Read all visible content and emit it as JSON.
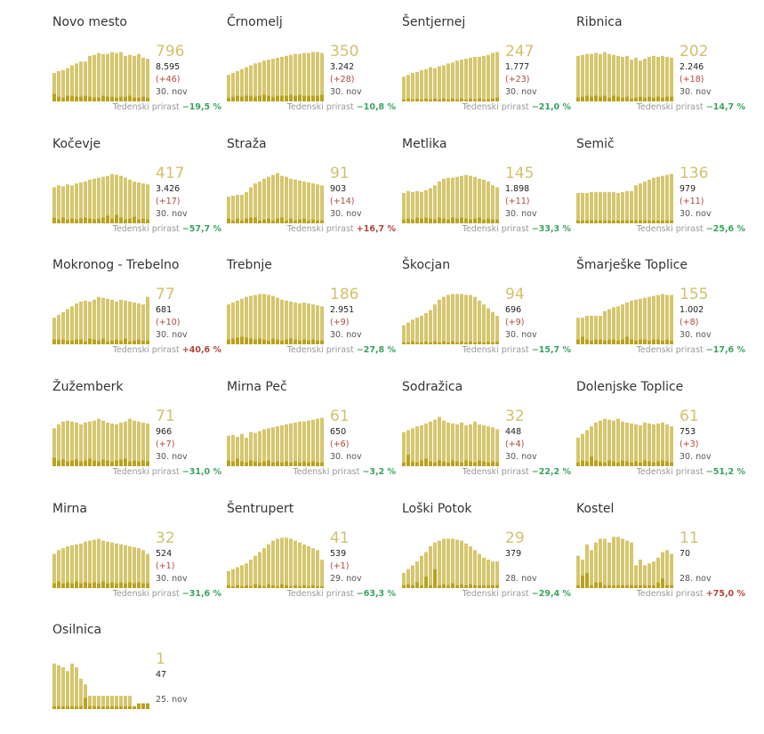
{
  "colors": {
    "bar": "#d6c66e",
    "bar_dark": "#b9a21d",
    "gap": "#ffffff",
    "neg": "#3aa35f",
    "pos": "#b0463c"
  },
  "week_label": "Tedenski prirast",
  "chart_data": [
    {
      "type": "bar",
      "name": "Novo mesto",
      "current": "796",
      "total": "8.595",
      "change": "(+46)",
      "date": "30. nov",
      "week": "−19,5 %",
      "week_sign": "neg",
      "values": [
        30,
        32,
        33,
        35,
        38,
        40,
        42,
        42,
        48,
        49,
        51,
        50,
        50,
        52,
        51,
        52,
        48,
        49,
        48,
        50,
        46,
        45
      ],
      "new": [
        8,
        5,
        4,
        6,
        6,
        5,
        5,
        6,
        5,
        4,
        4,
        6,
        5,
        5,
        4,
        5,
        5,
        6,
        4,
        4,
        5,
        4
      ]
    },
    {
      "type": "bar",
      "name": "Črnomelj",
      "current": "350",
      "total": "3.242",
      "change": "(+28)",
      "date": "30. nov",
      "week": "−10,8 %",
      "week_sign": "neg",
      "values": [
        28,
        30,
        32,
        34,
        36,
        38,
        40,
        41,
        43,
        44,
        45,
        46,
        47,
        48,
        49,
        50,
        50,
        51,
        51,
        52,
        52,
        51
      ],
      "new": [
        4,
        5,
        6,
        5,
        6,
        6,
        5,
        6,
        7,
        6,
        5,
        6,
        6,
        6,
        7,
        6,
        7,
        6,
        6,
        6,
        6,
        7
      ]
    },
    {
      "type": "bar",
      "name": "Šentjernej",
      "current": "247",
      "total": "1.777",
      "change": "(+23)",
      "date": "30. nov",
      "week": "−21,0 %",
      "week_sign": "neg",
      "values": [
        26,
        28,
        30,
        31,
        33,
        34,
        36,
        35,
        37,
        38,
        40,
        41,
        43,
        44,
        45,
        46,
        47,
        47,
        48,
        49,
        51,
        52
      ],
      "new": [
        2,
        3,
        2,
        3,
        2,
        3,
        2,
        3,
        2,
        3,
        2,
        3,
        2,
        3,
        2,
        3,
        2,
        3,
        2,
        2,
        3,
        4
      ]
    },
    {
      "type": "bar",
      "name": "Ribnica",
      "current": "202",
      "total": "2.246",
      "change": "(+18)",
      "date": "30. nov",
      "week": "−14,7 %",
      "week_sign": "neg",
      "values": [
        48,
        49,
        50,
        50,
        51,
        50,
        52,
        50,
        49,
        48,
        47,
        48,
        44,
        46,
        43,
        45,
        47,
        48,
        47,
        48,
        47,
        46
      ],
      "new": [
        4,
        5,
        6,
        5,
        6,
        5,
        6,
        4,
        6,
        5,
        4,
        5,
        3,
        4,
        5,
        4,
        5,
        4,
        5,
        4,
        5,
        5
      ]
    },
    {
      "type": "bar",
      "name": "Kočevje",
      "current": "417",
      "total": "3.426",
      "change": "(+17)",
      "date": "30. nov",
      "week": "−57,7 %",
      "week_sign": "neg",
      "values": [
        38,
        40,
        39,
        41,
        40,
        42,
        43,
        44,
        46,
        47,
        48,
        49,
        50,
        52,
        51,
        50,
        48,
        46,
        44,
        43,
        42,
        41
      ],
      "new": [
        6,
        4,
        6,
        4,
        5,
        4,
        5,
        6,
        5,
        4,
        5,
        6,
        8,
        5,
        9,
        6,
        4,
        5,
        7,
        4,
        5,
        4
      ]
    },
    {
      "type": "bar",
      "name": "Straža",
      "current": "91",
      "total": "903",
      "change": "(+14)",
      "date": "30. nov",
      "week": "+16,7 %",
      "week_sign": "pos",
      "values": [
        28,
        29,
        30,
        30,
        33,
        38,
        42,
        44,
        47,
        49,
        51,
        53,
        50,
        49,
        47,
        46,
        45,
        44,
        43,
        42,
        41,
        40
      ],
      "new": [
        5,
        3,
        5,
        3,
        5,
        6,
        6,
        3,
        4,
        5,
        3,
        5,
        6,
        3,
        5,
        3,
        4,
        5,
        3,
        4,
        3,
        3
      ]
    },
    {
      "type": "bar",
      "name": "Metlika",
      "current": "145",
      "total": "1.898",
      "change": "(+11)",
      "date": "30. nov",
      "week": "−33,3 %",
      "week_sign": "neg",
      "values": [
        32,
        34,
        33,
        34,
        33,
        35,
        37,
        40,
        44,
        47,
        48,
        48,
        49,
        50,
        51,
        50,
        49,
        47,
        46,
        44,
        40,
        38
      ],
      "new": [
        4,
        5,
        4,
        6,
        5,
        6,
        5,
        4,
        6,
        5,
        4,
        6,
        5,
        6,
        5,
        4,
        5,
        6,
        4,
        5,
        4,
        4
      ]
    },
    {
      "type": "bar",
      "name": "Semič",
      "current": "136",
      "total": "979",
      "change": "(+11)",
      "date": "30. nov",
      "week": "−25,6 %",
      "week_sign": "neg",
      "values": [
        32,
        32,
        32,
        33,
        33,
        33,
        33,
        33,
        33,
        32,
        33,
        34,
        34,
        40,
        42,
        44,
        46,
        48,
        49,
        50,
        51,
        52
      ],
      "new": [
        3,
        3,
        3,
        3,
        3,
        3,
        3,
        3,
        3,
        3,
        3,
        3,
        3,
        3,
        3,
        3,
        3,
        3,
        3,
        3,
        3,
        3
      ]
    },
    {
      "type": "bar",
      "name": "Mokronog - Trebelno",
      "current": "77",
      "total": "681",
      "change": "(+10)",
      "date": "30. nov",
      "week": "+40,6 %",
      "week_sign": "pos",
      "values": [
        28,
        31,
        34,
        37,
        40,
        43,
        45,
        46,
        45,
        47,
        50,
        49,
        48,
        47,
        45,
        47,
        46,
        45,
        44,
        43,
        42,
        50
      ],
      "new": [
        5,
        5,
        5,
        4,
        4,
        5,
        5,
        3,
        6,
        5,
        4,
        6,
        3,
        4,
        5,
        4,
        6,
        3,
        4,
        5,
        4,
        4
      ]
    },
    {
      "type": "bar",
      "name": "Trebnje",
      "current": "186",
      "total": "2.951",
      "change": "(+9)",
      "date": "30. nov",
      "week": "−27,8 %",
      "week_sign": "neg",
      "values": [
        42,
        44,
        46,
        48,
        50,
        51,
        52,
        53,
        53,
        52,
        51,
        49,
        47,
        46,
        45,
        44,
        43,
        44,
        43,
        42,
        41,
        40
      ],
      "new": [
        5,
        6,
        7,
        8,
        7,
        6,
        5,
        6,
        5,
        4,
        6,
        5,
        4,
        5,
        6,
        5,
        4,
        5,
        4,
        5,
        4,
        4
      ]
    },
    {
      "type": "bar",
      "name": "Škocjan",
      "current": "94",
      "total": "696",
      "change": "(+9)",
      "date": "30. nov",
      "week": "−15,7 %",
      "week_sign": "neg",
      "values": [
        20,
        23,
        26,
        28,
        30,
        33,
        36,
        42,
        47,
        50,
        52,
        53,
        53,
        53,
        52,
        52,
        50,
        46,
        42,
        38,
        34,
        30
      ],
      "new": [
        2,
        2,
        3,
        2,
        2,
        3,
        2,
        3,
        2,
        3,
        2,
        3,
        2,
        3,
        2,
        3,
        2,
        3,
        2,
        3,
        2,
        3
      ]
    },
    {
      "type": "bar",
      "name": "Šmarješke Toplice",
      "current": "155",
      "total": "1.002",
      "change": "(+8)",
      "date": "30. nov",
      "week": "−17,6 %",
      "week_sign": "neg",
      "values": [
        28,
        28,
        30,
        30,
        30,
        30,
        35,
        37,
        39,
        40,
        42,
        44,
        46,
        47,
        48,
        49,
        50,
        51,
        52,
        53,
        52,
        52
      ],
      "new": [
        5,
        8,
        5,
        4,
        5,
        5,
        4,
        5,
        5,
        4,
        5,
        8,
        5,
        4,
        5,
        5,
        4,
        5,
        5,
        4,
        5,
        4
      ]
    },
    {
      "type": "bar",
      "name": "Žužemberk",
      "current": "71",
      "total": "966",
      "change": "(+7)",
      "date": "30. nov",
      "week": "−31,0 %",
      "week_sign": "neg",
      "values": [
        40,
        44,
        47,
        48,
        47,
        46,
        44,
        46,
        47,
        48,
        50,
        48,
        46,
        45,
        44,
        46,
        47,
        50,
        48,
        47,
        46,
        45
      ],
      "new": [
        9,
        6,
        7,
        5,
        6,
        7,
        5,
        6,
        8,
        6,
        5,
        7,
        6,
        5,
        6,
        7,
        8,
        5,
        6,
        5,
        6,
        5
      ]
    },
    {
      "type": "bar",
      "name": "Mirna Peč",
      "current": "61",
      "total": "650",
      "change": "(+6)",
      "date": "30. nov",
      "week": "−3,2 %",
      "week_sign": "neg",
      "values": [
        32,
        33,
        31,
        34,
        30,
        36,
        35,
        37,
        39,
        40,
        41,
        42,
        43,
        44,
        45,
        46,
        47,
        47,
        48,
        49,
        50,
        51
      ],
      "new": [
        6,
        5,
        8,
        5,
        4,
        6,
        5,
        4,
        5,
        6,
        4,
        5,
        4,
        5,
        4,
        5,
        4,
        5,
        4,
        5,
        4,
        4
      ]
    },
    {
      "type": "bar",
      "name": "Sodražica",
      "current": "32",
      "total": "448",
      "change": "(+4)",
      "date": "30. nov",
      "week": "−22,2 %",
      "week_sign": "neg",
      "values": [
        36,
        38,
        40,
        42,
        43,
        45,
        47,
        49,
        52,
        48,
        46,
        45,
        44,
        46,
        43,
        44,
        47,
        44,
        43,
        42,
        41,
        39
      ],
      "new": [
        4,
        12,
        5,
        4,
        6,
        8,
        5,
        4,
        6,
        5,
        4,
        6,
        5,
        4,
        6,
        5,
        4,
        6,
        5,
        4,
        5,
        4
      ]
    },
    {
      "type": "bar",
      "name": "Dolenjske Toplice",
      "current": "61",
      "total": "753",
      "change": "(+3)",
      "date": "30. nov",
      "week": "−51,2 %",
      "week_sign": "neg",
      "values": [
        30,
        34,
        38,
        42,
        46,
        48,
        50,
        49,
        48,
        50,
        47,
        46,
        45,
        44,
        43,
        46,
        45,
        44,
        45,
        46,
        44,
        42
      ],
      "new": [
        4,
        6,
        5,
        10,
        6,
        5,
        4,
        6,
        5,
        4,
        6,
        5,
        4,
        5,
        4,
        6,
        5,
        4,
        5,
        6,
        5,
        4
      ]
    },
    {
      "type": "bar",
      "name": "Mirna",
      "current": "32",
      "total": "524",
      "change": "(+1)",
      "date": "30. nov",
      "week": "−31,6 %",
      "week_sign": "neg",
      "values": [
        36,
        40,
        42,
        44,
        45,
        46,
        47,
        49,
        50,
        51,
        52,
        50,
        49,
        48,
        47,
        46,
        45,
        44,
        43,
        42,
        40,
        36
      ],
      "new": [
        5,
        7,
        5,
        6,
        5,
        7,
        5,
        6,
        5,
        6,
        5,
        7,
        5,
        6,
        5,
        6,
        5,
        6,
        5,
        6,
        5,
        5
      ]
    },
    {
      "type": "bar",
      "name": "Šentrupert",
      "current": "41",
      "total": "539",
      "change": "(+1)",
      "date": "29. nov",
      "week": "−63,3 %",
      "week_sign": "neg",
      "values": [
        18,
        20,
        22,
        24,
        26,
        30,
        34,
        38,
        42,
        46,
        50,
        52,
        53,
        53,
        52,
        50,
        48,
        46,
        44,
        42,
        40,
        30
      ],
      "new": [
        3,
        2,
        3,
        2,
        3,
        2,
        4,
        3,
        2,
        4,
        3,
        2,
        4,
        3,
        2,
        3,
        2,
        3,
        2,
        3,
        2,
        2
      ]
    },
    {
      "type": "bar",
      "name": "Loški Potok",
      "current": "29",
      "total": "379",
      "change": "",
      "date": "28. nov",
      "week": "−29,4 %",
      "week_sign": "neg",
      "values": [
        16,
        20,
        24,
        28,
        34,
        38,
        44,
        48,
        50,
        52,
        52,
        52,
        51,
        50,
        47,
        44,
        40,
        36,
        32,
        30,
        28,
        28
      ],
      "new": [
        3,
        4,
        3,
        6,
        3,
        12,
        3,
        20,
        3,
        4,
        3,
        5,
        3,
        4,
        3,
        4,
        3,
        3,
        3,
        3,
        3,
        3
      ]
    },
    {
      "type": "bar",
      "name": "Kostel",
      "current": "11",
      "total": "70",
      "change": "",
      "date": "28. nov",
      "week": "+75,0 %",
      "week_sign": "pos",
      "values": [
        34,
        30,
        46,
        40,
        48,
        52,
        52,
        48,
        54,
        54,
        52,
        50,
        48,
        24,
        30,
        24,
        26,
        28,
        32,
        38,
        40,
        36
      ],
      "new": [
        3,
        13,
        16,
        3,
        6,
        6,
        3,
        3,
        3,
        3,
        3,
        3,
        3,
        3,
        3,
        3,
        3,
        3,
        6,
        10,
        3,
        3
      ]
    },
    {
      "type": "bar",
      "name": "Osilnica",
      "current": "1",
      "total": "47",
      "change": "",
      "date": "25. nov",
      "week": "",
      "week_sign": "neg",
      "values": [
        48,
        46,
        44,
        40,
        48,
        44,
        32,
        26,
        14,
        14,
        14,
        14,
        14,
        14,
        14,
        14,
        14,
        14,
        3,
        6,
        6,
        6
      ],
      "new": [
        3,
        3,
        3,
        3,
        3,
        3,
        3,
        12,
        3,
        3,
        3,
        3,
        3,
        3,
        3,
        3,
        3,
        3,
        3,
        6,
        6,
        6
      ]
    }
  ]
}
